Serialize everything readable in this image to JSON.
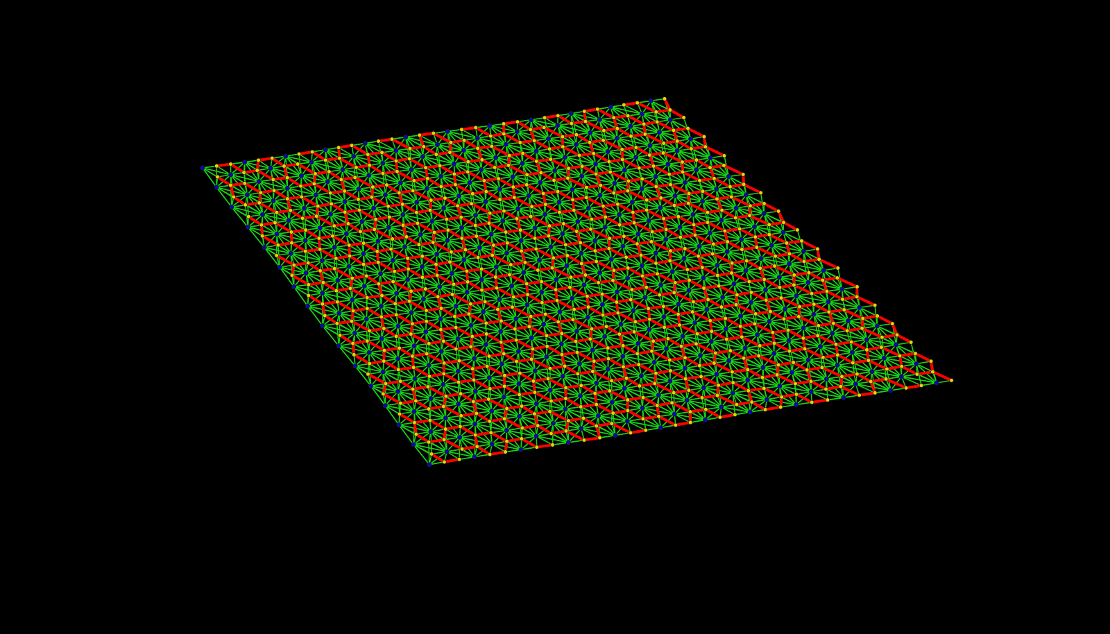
{
  "scene": {
    "background": "#000000",
    "colors": {
      "spoke": "#16d316",
      "ring": "#ff0000",
      "hub_node": "#0a0aa8",
      "node": "#e6d400"
    }
  }
}
